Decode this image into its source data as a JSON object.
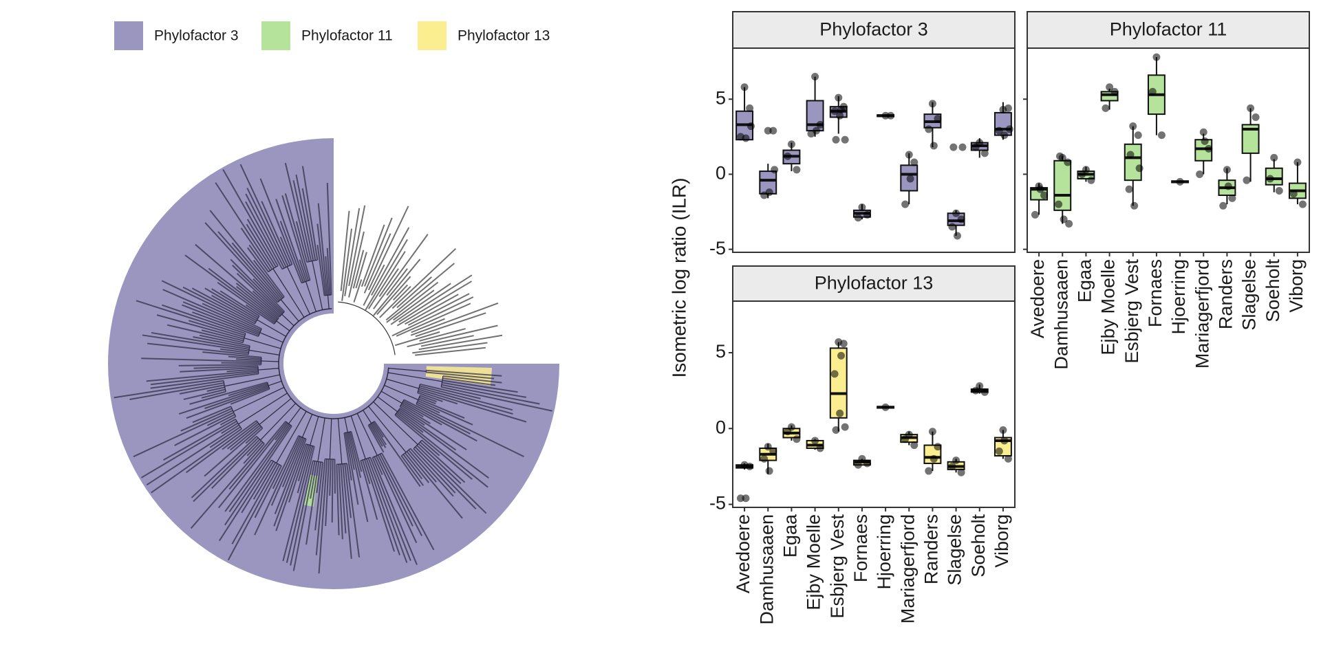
{
  "legend": [
    {
      "label": "Phylofactor 3",
      "color": "#9a96bf"
    },
    {
      "label": "Phylofactor 11",
      "color": "#b6e39c"
    },
    {
      "label": "Phylofactor 13",
      "color": "#fbee90"
    }
  ],
  "y_label": "Isometric log ratio (ILR)",
  "chart_data": [
    {
      "type": "box",
      "title": "Phylofactor 3",
      "color": "#9a96bf",
      "categories": [
        "Avedoere",
        "Damhusaaen",
        "Egaa",
        "Ejby Moelle",
        "Esbjerg Vest",
        "Fornaes",
        "Hjoerring",
        "Mariagerfjord",
        "Randers",
        "Slagelse",
        "Soeholt",
        "Viborg"
      ],
      "ylim": [
        -5.2,
        8.4
      ],
      "yticks": [
        -5,
        0,
        5
      ],
      "boxes": [
        {
          "min": 2.3,
          "q1": 2.3,
          "median": 3.3,
          "q3": 4.2,
          "max": 5.8,
          "points": [
            5.8,
            4.4,
            2.5,
            2.4,
            3.2
          ]
        },
        {
          "min": -1.6,
          "q1": -1.3,
          "median": -0.4,
          "q3": 0.2,
          "max": 0.7,
          "points": [
            2.9,
            2.9,
            -1.4,
            -1.2,
            0.3
          ]
        },
        {
          "min": 0.2,
          "q1": 0.7,
          "median": 1.2,
          "q3": 1.6,
          "max": 2.1,
          "points": [
            2.0,
            0.3,
            1.2
          ]
        },
        {
          "min": 2.5,
          "q1": 2.9,
          "median": 3.3,
          "q3": 4.9,
          "max": 6.5,
          "points": [
            6.5,
            3.3,
            2.7,
            2.9
          ]
        },
        {
          "min": 2.7,
          "q1": 3.8,
          "median": 4.2,
          "q3": 4.5,
          "max": 5.2,
          "points": [
            5.1,
            4.5,
            4.2,
            3.9,
            2.3,
            2.3,
            4.3
          ]
        },
        {
          "min": -3.0,
          "q1": -2.85,
          "median": -2.6,
          "q3": -2.4,
          "max": -2.0,
          "points": [
            -2.2,
            -2.7,
            -2.9
          ]
        },
        {
          "min": 3.85,
          "q1": 3.85,
          "median": 3.9,
          "q3": 3.95,
          "max": 3.95,
          "points": [
            3.9,
            3.9
          ]
        },
        {
          "min": -2.0,
          "q1": -1.1,
          "median": 0,
          "q3": 0.6,
          "max": 1.4,
          "points": [
            1.3,
            0.8,
            -2.0,
            -0.3
          ]
        },
        {
          "min": 1.8,
          "q1": 3.1,
          "median": 3.5,
          "q3": 4.0,
          "max": 4.8,
          "points": [
            4.7,
            3.7,
            3.0,
            1.9
          ]
        },
        {
          "min": -4.1,
          "q1": -3.4,
          "median": -3.1,
          "q3": -2.6,
          "max": -2.4,
          "points": [
            -2.6,
            -3.0,
            -3.5,
            -4.1,
            1.8,
            1.8
          ]
        },
        {
          "min": 1.1,
          "q1": 1.6,
          "median": 1.9,
          "q3": 2.1,
          "max": 2.4,
          "points": [
            2.1,
            1.4,
            1.8
          ]
        },
        {
          "min": 2.3,
          "q1": 2.6,
          "median": 3.0,
          "q3": 4.1,
          "max": 4.8,
          "points": [
            4.3,
            4.4,
            2.9,
            2.6,
            3.0
          ]
        }
      ]
    },
    {
      "type": "box",
      "title": "Phylofactor 11",
      "color": "#b6e39c",
      "categories": [
        "Avedoere",
        "Damhusaaen",
        "Egaa",
        "Ejby Moelle",
        "Esbjerg Vest",
        "Fornaes",
        "Hjoerring",
        "Mariagerfjord",
        "Randers",
        "Slagelse",
        "Soeholt",
        "Viborg"
      ],
      "ylim": [
        -5.2,
        8.4
      ],
      "yticks": [
        -5,
        0,
        5
      ],
      "boxes": [
        {
          "min": -2.7,
          "q1": -1.7,
          "median": -1.0,
          "q3": -0.9,
          "max": -0.6,
          "points": [
            -0.8,
            -1.4,
            -2.7,
            -1.0
          ]
        },
        {
          "min": -3.3,
          "q1": -2.4,
          "median": -1.4,
          "q3": 0.9,
          "max": 1.2,
          "points": [
            1.1,
            0.8,
            -2.0,
            -3.0,
            -3.3,
            1.2
          ]
        },
        {
          "min": -0.5,
          "q1": -0.3,
          "median": 0,
          "q3": 0.2,
          "max": 0.5,
          "points": [
            0.3,
            -0.4,
            0
          ]
        },
        {
          "min": 4.3,
          "q1": 4.9,
          "median": 5.3,
          "q3": 5.5,
          "max": 5.7,
          "points": [
            5.8,
            5.5,
            4.4
          ]
        },
        {
          "min": -2.1,
          "q1": -0.4,
          "median": 1.1,
          "q3": 2.0,
          "max": 3.2,
          "points": [
            3.2,
            2.6,
            -1.0,
            -2.1,
            0.4,
            1.3
          ]
        },
        {
          "min": 2.6,
          "q1": 4.0,
          "median": 5.3,
          "q3": 6.6,
          "max": 7.8,
          "points": [
            7.8,
            2.6,
            5.5
          ]
        },
        {
          "min": -0.55,
          "q1": -0.55,
          "median": -0.5,
          "q3": -0.45,
          "max": -0.45,
          "points": [
            -0.5
          ]
        },
        {
          "min": 0,
          "q1": 0.9,
          "median": 1.7,
          "q3": 2.3,
          "max": 2.7,
          "points": [
            2.8,
            1.7,
            0,
            2.2
          ]
        },
        {
          "min": -2.0,
          "q1": -1.4,
          "median": -0.9,
          "q3": -0.4,
          "max": 0.4,
          "points": [
            0.3,
            -1.6,
            -2.1,
            -0.8
          ]
        },
        {
          "min": -0.5,
          "q1": 1.4,
          "median": 3.0,
          "q3": 3.3,
          "max": 4.4,
          "points": [
            4.4,
            3.8,
            -0.4
          ]
        },
        {
          "min": -1.2,
          "q1": -0.7,
          "median": -0.3,
          "q3": 0.4,
          "max": 1.0,
          "points": [
            1.1,
            -1.1,
            -0.3
          ]
        },
        {
          "min": -2.0,
          "q1": -1.6,
          "median": -1.1,
          "q3": -0.6,
          "max": 0.8,
          "points": [
            0.8,
            -2.0,
            -1.3
          ]
        }
      ]
    },
    {
      "type": "box",
      "title": "Phylofactor 13",
      "color": "#fbee90",
      "categories": [
        "Avedoere",
        "Damhusaaen",
        "Egaa",
        "Ejby Moelle",
        "Esbjerg Vest",
        "Fornaes",
        "Hjoerring",
        "Mariagerfjord",
        "Randers",
        "Slagelse",
        "Soeholt",
        "Viborg"
      ],
      "ylim": [
        -5.2,
        8.4
      ],
      "yticks": [
        -5,
        0,
        5
      ],
      "boxes": [
        {
          "min": -2.7,
          "q1": -2.6,
          "median": -2.5,
          "q3": -2.4,
          "max": -2.3,
          "points": [
            -2.4,
            -2.5,
            -4.6,
            -4.6
          ]
        },
        {
          "min": -3.0,
          "q1": -2.1,
          "median": -1.7,
          "q3": -1.3,
          "max": -1.0,
          "points": [
            -1.2,
            -1.5,
            -2.0,
            -2.8
          ]
        },
        {
          "min": -0.8,
          "q1": -0.6,
          "median": -0.3,
          "q3": 0,
          "max": 0.2,
          "points": [
            0.1,
            -0.7,
            -0.2
          ]
        },
        {
          "min": -1.4,
          "q1": -1.3,
          "median": -1.1,
          "q3": -0.8,
          "max": -0.7,
          "points": [
            -0.8,
            -1.3
          ]
        },
        {
          "min": -0.2,
          "q1": 0.7,
          "median": 2.3,
          "q3": 5.3,
          "max": 5.7,
          "points": [
            5.7,
            5.6,
            3.6,
            1.0,
            0.1,
            -0.1,
            4.8
          ]
        },
        {
          "min": -2.4,
          "q1": -2.4,
          "median": -2.2,
          "q3": -2.1,
          "max": -2.0,
          "points": [
            -2.0,
            -2.3,
            -2.4
          ]
        },
        {
          "min": 1.35,
          "q1": 1.35,
          "median": 1.4,
          "q3": 1.45,
          "max": 1.45,
          "points": [
            1.4
          ]
        },
        {
          "min": -1.1,
          "q1": -0.9,
          "median": -0.6,
          "q3": -0.4,
          "max": -0.2,
          "points": [
            -0.4,
            -1.1,
            -0.7
          ]
        },
        {
          "min": -2.8,
          "q1": -2.3,
          "median": -1.9,
          "q3": -1.1,
          "max": -0.2,
          "points": [
            -0.2,
            -1.2,
            -2.8,
            -2.0
          ]
        },
        {
          "min": -2.9,
          "q1": -2.7,
          "median": -2.5,
          "q3": -2.2,
          "max": -2.0,
          "points": [
            -2.1,
            -2.9,
            -2.5
          ]
        },
        {
          "min": 2.3,
          "q1": 2.4,
          "median": 2.5,
          "q3": 2.6,
          "max": 2.9,
          "points": [
            2.8,
            2.4,
            2.5
          ]
        },
        {
          "min": -2.0,
          "q1": -1.8,
          "median": -0.8,
          "q3": -0.6,
          "max": -0.1,
          "points": [
            -0.1,
            -2.0,
            -1.5,
            -0.8
          ]
        }
      ]
    }
  ]
}
